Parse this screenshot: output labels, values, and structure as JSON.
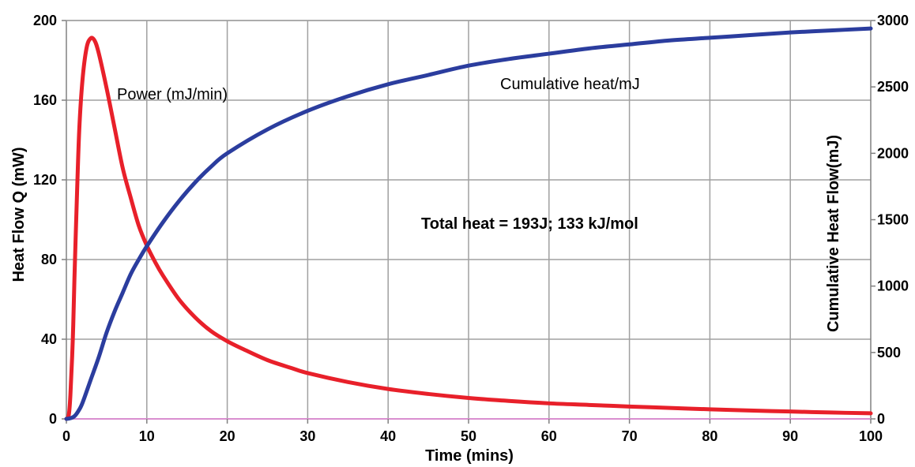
{
  "chart_data": {
    "type": "line",
    "title": "",
    "xlabel": "Time (mins)",
    "ylabel": "Heat Flow Q (mW)",
    "y2label": "Cumulative Heat Flow(mJ)",
    "xlim": [
      0,
      100
    ],
    "ylim": [
      0,
      200
    ],
    "y2lim": [
      0,
      3000
    ],
    "x_ticks": [
      0,
      10,
      20,
      30,
      40,
      50,
      60,
      70,
      80,
      90,
      100
    ],
    "y_ticks": [
      0,
      40,
      80,
      120,
      160,
      200
    ],
    "y2_ticks": [
      0,
      500,
      1000,
      1500,
      2000,
      2500,
      3000
    ],
    "grid": true,
    "baseline_color": "#d98fd0",
    "annotation": "Total heat = 193J; 133 kJ/mol",
    "series": [
      {
        "name": "Power (mJ/min)",
        "axis": "left",
        "color": "#e8202a",
        "x": [
          0,
          0.3,
          0.5,
          0.8,
          1,
          1.3,
          1.6,
          2,
          2.5,
          3,
          3.5,
          4,
          5,
          6,
          7,
          8,
          9,
          10,
          11,
          12,
          14,
          16,
          18,
          20,
          22,
          25,
          28,
          30,
          35,
          40,
          45,
          50,
          55,
          60,
          65,
          70,
          75,
          80,
          85,
          90,
          95,
          100
        ],
        "y": [
          0,
          2,
          12,
          40,
          70,
          110,
          145,
          170,
          186,
          191,
          190,
          184,
          166,
          146,
          126,
          111,
          97,
          87,
          79,
          72,
          60,
          51,
          44,
          39,
          35,
          29.5,
          25.5,
          23,
          18.5,
          15,
          12.5,
          10.5,
          9,
          7.8,
          7,
          6.2,
          5.5,
          4.8,
          4.2,
          3.7,
          3.2,
          2.8
        ]
      },
      {
        "name": "Cumulative heat/mJ",
        "axis": "right",
        "color": "#2b3d9e",
        "x": [
          0,
          0.5,
          1,
          1.5,
          2,
          3,
          4,
          5,
          6,
          7,
          8,
          9,
          10,
          12,
          14,
          16,
          18,
          20,
          25,
          30,
          35,
          40,
          45,
          50,
          55,
          60,
          65,
          70,
          75,
          80,
          85,
          90,
          95,
          100
        ],
        "y": [
          0,
          5,
          20,
          60,
          120,
          290,
          460,
          650,
          810,
          950,
          1090,
          1200,
          1300,
          1480,
          1640,
          1780,
          1900,
          2000,
          2180,
          2320,
          2430,
          2520,
          2590,
          2660,
          2710,
          2750,
          2790,
          2820,
          2850,
          2870,
          2890,
          2910,
          2925,
          2940
        ]
      }
    ]
  }
}
